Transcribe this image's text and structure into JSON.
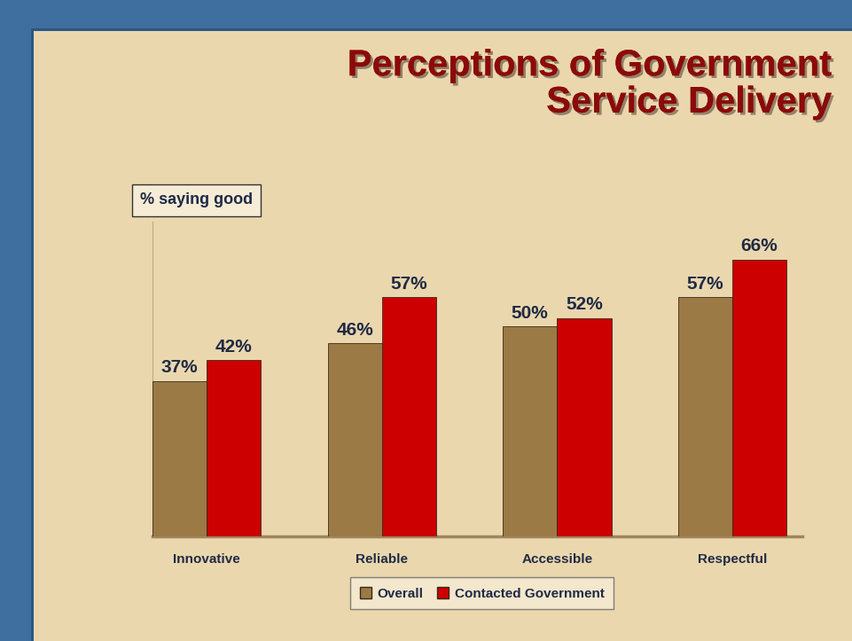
{
  "chart_data": {
    "type": "bar",
    "title": "Perceptions of Government\nService Delivery",
    "subtitle": "% saying good",
    "categories": [
      "Innovative",
      "Reliable",
      "Accessible",
      "Respectful"
    ],
    "series": [
      {
        "name": "Overall",
        "color": "#9c7a45",
        "values": [
          37,
          46,
          50,
          57
        ],
        "value_labels": [
          "37%",
          "46%",
          "50%",
          "57%"
        ]
      },
      {
        "name": "Contacted Government",
        "color": "#cc0000",
        "values": [
          42,
          57,
          52,
          66
        ],
        "value_labels": [
          "42%",
          "57%",
          "52%",
          "66%"
        ]
      }
    ],
    "ylim": [
      0,
      75
    ],
    "data_labels": true,
    "tick_labels": "x",
    "legend": "lower center",
    "grid": false
  }
}
